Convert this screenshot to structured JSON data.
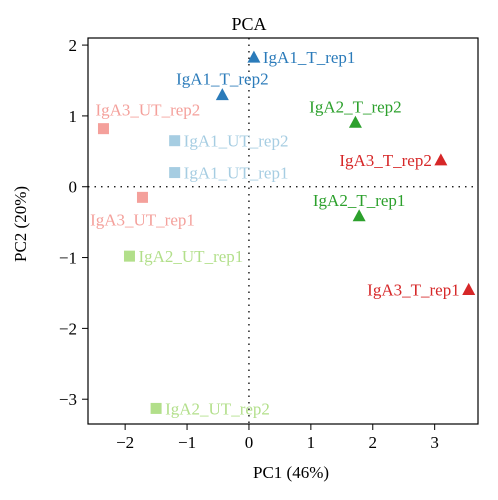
{
  "chart_data": {
    "type": "scatter",
    "title": "PCA",
    "xlabel": "PC1 (46%)",
    "ylabel": "PC2 (20%)",
    "xlim": [
      -2.6,
      3.7
    ],
    "ylim": [
      -3.35,
      2.1
    ],
    "xticks": [
      -2,
      -1,
      0,
      1,
      2,
      3
    ],
    "yticks": [
      -3,
      -2,
      -1,
      0,
      1,
      2
    ],
    "reference_lines": {
      "x": 0,
      "y": 0,
      "style": "dotted"
    },
    "grid": false,
    "legend": "none",
    "points": [
      {
        "label": "IgA1_T_rep1",
        "x": 0.08,
        "y": 1.83,
        "shape": "triangle",
        "color": "#2b7bba",
        "label_pos": "right"
      },
      {
        "label": "IgA1_T_rep2",
        "x": -0.43,
        "y": 1.3,
        "shape": "triangle",
        "color": "#2b7bba",
        "label_pos": "above"
      },
      {
        "label": "IgA2_T_rep2",
        "x": 1.72,
        "y": 0.91,
        "shape": "triangle",
        "color": "#2ca02c",
        "label_pos": "above"
      },
      {
        "label": "IgA2_T_rep1",
        "x": 1.78,
        "y": -0.41,
        "shape": "triangle",
        "color": "#2ca02c",
        "label_pos": "above"
      },
      {
        "label": "IgA3_T_rep2",
        "x": 3.1,
        "y": 0.38,
        "shape": "triangle",
        "color": "#d62728",
        "label_pos": "left"
      },
      {
        "label": "IgA3_T_rep1",
        "x": 3.55,
        "y": -1.45,
        "shape": "triangle",
        "color": "#d62728",
        "label_pos": "left"
      },
      {
        "label": "IgA1_UT_rep2",
        "x": -1.2,
        "y": 0.65,
        "shape": "square",
        "color": "#a6cde2",
        "label_pos": "right"
      },
      {
        "label": "IgA1_UT_rep1",
        "x": -1.2,
        "y": 0.2,
        "shape": "square",
        "color": "#a6cde2",
        "label_pos": "right"
      },
      {
        "label": "IgA3_UT_rep2",
        "x": -2.35,
        "y": 0.82,
        "shape": "square",
        "color": "#f4a09b",
        "label_pos": "above-right"
      },
      {
        "label": "IgA3_UT_rep1",
        "x": -1.72,
        "y": -0.15,
        "shape": "square",
        "color": "#f4a09b",
        "label_pos": "below"
      },
      {
        "label": "IgA2_UT_rep1",
        "x": -1.93,
        "y": -0.98,
        "shape": "square",
        "color": "#b2df8a",
        "label_pos": "right"
      },
      {
        "label": "IgA2_UT_rep2",
        "x": -1.5,
        "y": -3.13,
        "shape": "square",
        "color": "#b2df8a",
        "label_pos": "right"
      }
    ]
  }
}
